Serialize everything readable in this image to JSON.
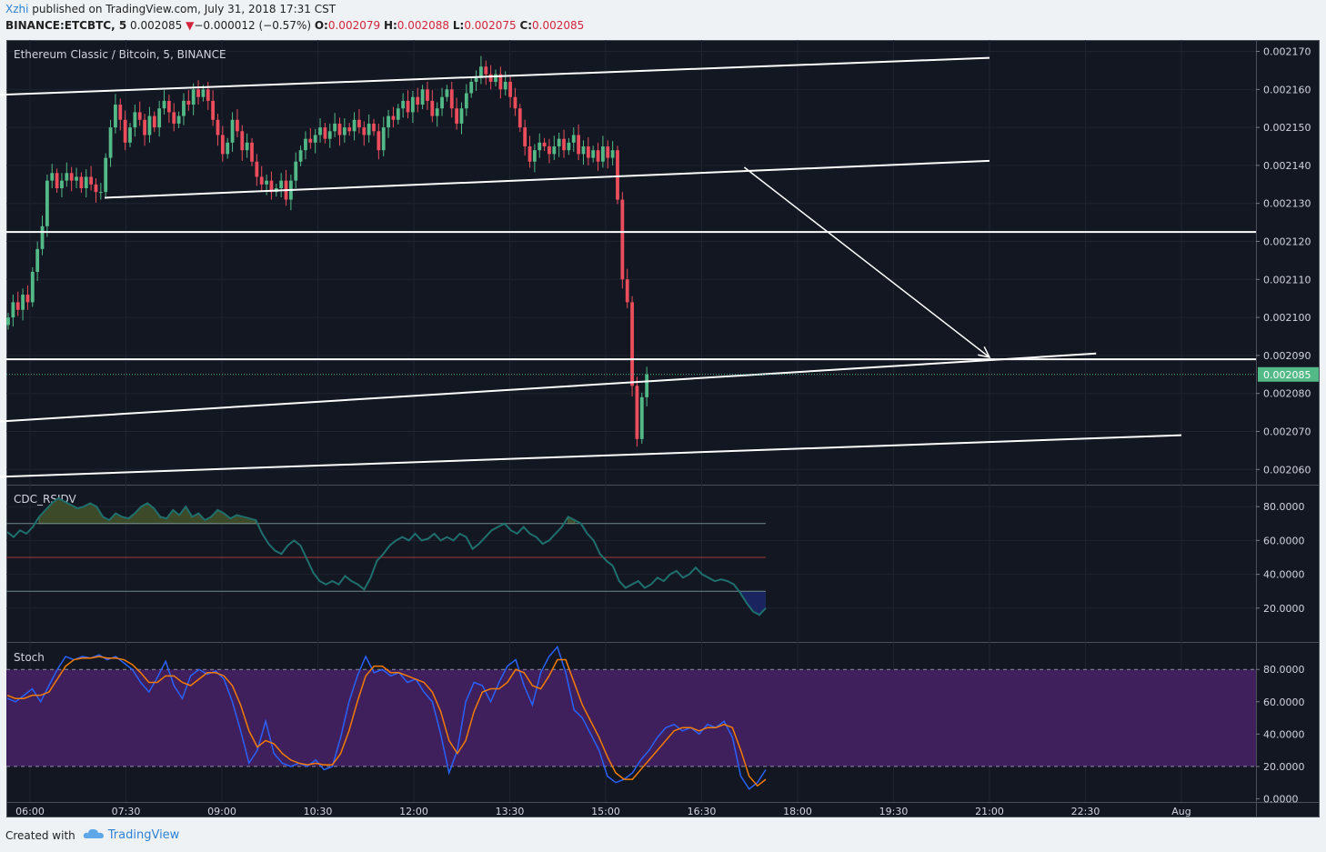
{
  "header": {
    "author": "Xzhi",
    "published_text": "published on TradingView.com, July 31, 2018 17:31 CST",
    "symbol": "BINANCE:ETCBTC, 5",
    "price": "0.002085",
    "change_arrow": "▼",
    "change": "−0.000012 (−0.57%)",
    "open_label": "O:",
    "open": "0.002079",
    "high_label": "H:",
    "high": "0.002088",
    "low_label": "L:",
    "low": "0.002075",
    "close_label": "C:",
    "close": "0.002085"
  },
  "footer": {
    "created_with": "Created with",
    "brand": "TradingView",
    "logo_icon": "tradingview-cloud-icon"
  },
  "colors": {
    "background": "#131722",
    "up": "#53b987",
    "down": "#eb4d5c",
    "rsi_line": "#1f6f6c",
    "stoch_k": "#2962ff",
    "stoch_d": "#f57c00",
    "stoch_band": "#3f1f5c"
  },
  "chart_data": [
    {
      "type": "candlestick",
      "title": "Ethereum Classic / Bitcoin, 5, BINANCE",
      "x_ticks": [
        "06:00",
        "07:30",
        "09:00",
        "10:30",
        "12:00",
        "13:30",
        "15:00",
        "16:30",
        "18:00",
        "19:30",
        "21:00",
        "22:30",
        "Aug"
      ],
      "y_ticks": [
        "0.002170",
        "0.002160",
        "0.002150",
        "0.002140",
        "0.002130",
        "0.002120",
        "0.002110",
        "0.002100",
        "0.002090",
        "0.002080",
        "0.002070",
        "0.002060"
      ],
      "ylim": [
        0.002056,
        0.002173
      ],
      "last_price_label": "0.002085",
      "last_price": 0.002085,
      "horizontal_levels": [
        0.0021225,
        0.002089
      ],
      "series": [
        {
          "name": "ETCBTC",
          "close_path": [
            0.0021,
            0.002104,
            0.002102,
            0.002106,
            0.002104,
            0.002112,
            0.002118,
            0.002124,
            0.002136,
            0.002138,
            0.002134,
            0.002136,
            0.002138,
            0.002136,
            0.002137,
            0.002134,
            0.002137,
            0.002135,
            0.002133,
            0.002133,
            0.002142,
            0.00215,
            0.002156,
            0.002152,
            0.002146,
            0.00215,
            0.002154,
            0.002152,
            0.002148,
            0.002153,
            0.00215,
            0.002155,
            0.002157,
            0.002154,
            0.002151,
            0.002153,
            0.002157,
            0.002156,
            0.00216,
            0.002158,
            0.00216,
            0.002157,
            0.002152,
            0.002148,
            0.002143,
            0.002146,
            0.002152,
            0.002149,
            0.002144,
            0.002146,
            0.002141,
            0.002137,
            0.002135,
            0.002136,
            0.002133,
            0.002134,
            0.002136,
            0.002131,
            0.002136,
            0.002141,
            0.002144,
            0.002147,
            0.002146,
            0.002148,
            0.00215,
            0.002147,
            0.002149,
            0.002151,
            0.002148,
            0.00215,
            0.002149,
            0.002152,
            0.00215,
            0.002148,
            0.002151,
            0.002149,
            0.002144,
            0.00215,
            0.002153,
            0.002152,
            0.002155,
            0.002157,
            0.002154,
            0.002158,
            0.002156,
            0.00216,
            0.002157,
            0.002153,
            0.002155,
            0.002158,
            0.00216,
            0.002155,
            0.002151,
            0.002155,
            0.002159,
            0.002162,
            0.002163,
            0.002166,
            0.002164,
            0.002162,
            0.002164,
            0.00216,
            0.002162,
            0.002158,
            0.002155,
            0.00215,
            0.002145,
            0.002141,
            0.002144,
            0.002146,
            0.002145,
            0.002143,
            0.002145,
            0.002147,
            0.002144,
            0.002146,
            0.002148,
            0.002143,
            0.002145,
            0.002142,
            0.002144,
            0.002141,
            0.002145,
            0.002142,
            0.002144,
            0.002131,
            0.00211,
            0.002104,
            0.002082,
            0.002068,
            0.002079,
            0.002085
          ]
        }
      ],
      "trendlines": [
        {
          "x1": "05:25",
          "y1": 0.0021585,
          "x2": "21:00",
          "y2": 0.0021683
        },
        {
          "x1": "07:10",
          "y1": 0.0021315,
          "x2": "21:00",
          "y2": 0.0021412
        },
        {
          "x1": "05:25",
          "y1": 0.0020725,
          "x2": "22:40",
          "y2": 0.0020905
        },
        {
          "x1": "05:25",
          "y1": 0.002058,
          "x2": "Aug",
          "y2": 0.002069
        }
      ],
      "arrow": {
        "x1": "17:10",
        "y1": 0.0021395,
        "x2": "21:00",
        "y2": 0.0020895
      }
    },
    {
      "type": "line",
      "title": "CDC_RSIDV",
      "y_ticks": [
        "80.0000",
        "60.0000",
        "40.0000",
        "20.0000"
      ],
      "ylim": [
        0,
        93
      ],
      "levels": [
        70,
        50,
        30
      ],
      "series": [
        {
          "name": "RSI",
          "values": [
            65,
            62,
            66,
            64,
            68,
            74,
            78,
            82,
            85,
            83,
            81,
            79,
            80,
            82,
            80,
            74,
            72,
            76,
            74,
            73,
            76,
            80,
            82,
            79,
            74,
            73,
            78,
            75,
            80,
            74,
            76,
            72,
            74,
            78,
            76,
            73,
            75,
            74,
            73,
            72,
            64,
            58,
            54,
            52,
            57,
            60,
            57,
            49,
            41,
            36,
            34,
            36,
            34,
            39,
            36,
            34,
            31,
            38,
            48,
            52,
            57,
            60,
            62,
            60,
            64,
            60,
            61,
            64,
            60,
            62,
            60,
            64,
            62,
            55,
            58,
            62,
            66,
            68,
            70,
            66,
            64,
            68,
            64,
            62,
            58,
            60,
            64,
            68,
            74,
            72,
            70,
            64,
            60,
            52,
            48,
            45,
            36,
            32,
            34,
            36,
            32,
            34,
            38,
            36,
            40,
            42,
            38,
            40,
            44,
            40,
            38,
            36,
            37,
            36,
            34,
            29,
            23,
            18,
            16,
            20
          ]
        }
      ]
    },
    {
      "type": "line",
      "title": "Stoch",
      "y_ticks": [
        "80.0000",
        "60.0000",
        "40.0000",
        "20.0000",
        "0.0000"
      ],
      "ylim": [
        -2,
        97
      ],
      "band": [
        20,
        80
      ],
      "series": [
        {
          "name": "%K",
          "values": [
            62,
            60,
            64,
            68,
            60,
            70,
            80,
            88,
            86,
            88,
            87,
            89,
            86,
            88,
            84,
            80,
            72,
            66,
            75,
            85,
            70,
            62,
            76,
            80,
            77,
            79,
            74,
            60,
            42,
            22,
            30,
            48,
            28,
            22,
            20,
            22,
            20,
            24,
            18,
            20,
            38,
            60,
            76,
            88,
            78,
            80,
            76,
            78,
            72,
            74,
            66,
            60,
            40,
            16,
            30,
            60,
            72,
            70,
            60,
            72,
            82,
            86,
            70,
            58,
            78,
            88,
            94,
            78,
            55,
            50,
            40,
            30,
            14,
            10,
            12,
            16,
            24,
            30,
            38,
            44,
            46,
            42,
            44,
            40,
            46,
            44,
            48,
            38,
            14,
            6,
            10,
            18
          ]
        },
        {
          "name": "%D",
          "values": [
            64,
            62,
            62,
            64,
            64,
            66,
            74,
            82,
            86,
            87,
            87,
            88,
            87,
            87,
            86,
            83,
            78,
            72,
            72,
            76,
            76,
            72,
            70,
            74,
            78,
            78,
            76,
            70,
            58,
            42,
            32,
            36,
            34,
            28,
            24,
            22,
            21,
            22,
            21,
            21,
            28,
            42,
            60,
            76,
            82,
            82,
            78,
            78,
            76,
            74,
            72,
            66,
            54,
            36,
            28,
            36,
            54,
            66,
            68,
            68,
            72,
            80,
            78,
            70,
            68,
            76,
            86,
            86,
            72,
            58,
            48,
            38,
            26,
            16,
            12,
            12,
            18,
            24,
            30,
            36,
            42,
            44,
            44,
            42,
            44,
            44,
            46,
            44,
            30,
            14,
            8,
            12
          ]
        }
      ]
    }
  ]
}
